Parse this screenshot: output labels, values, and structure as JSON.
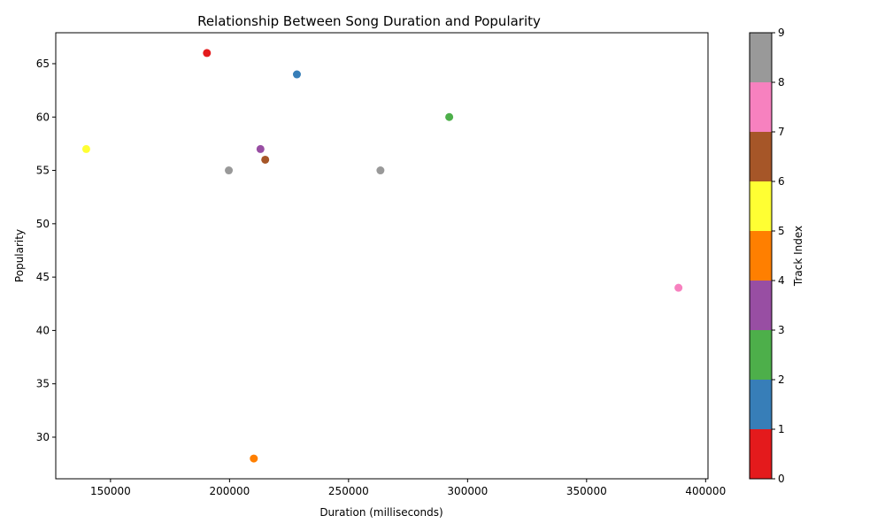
{
  "chart_data": {
    "type": "scatter",
    "title": "Relationship Between Song Duration and Popularity",
    "xlabel": "Duration (milliseconds)",
    "ylabel": "Popularity",
    "xlim": [
      127000,
      401000
    ],
    "ylim": [
      26.1,
      67.9
    ],
    "xticks": [
      150000,
      200000,
      250000,
      300000,
      350000,
      400000
    ],
    "yticks": [
      30,
      35,
      40,
      45,
      50,
      55,
      60,
      65
    ],
    "grid": false,
    "points": [
      {
        "index": 0,
        "x": 190500,
        "y": 66,
        "color": "#e41a1c"
      },
      {
        "index": 1,
        "x": 228300,
        "y": 64,
        "color": "#377eb8"
      },
      {
        "index": 2,
        "x": 292300,
        "y": 60,
        "color": "#4daf4a"
      },
      {
        "index": 3,
        "x": 213000,
        "y": 57,
        "color": "#984ea3"
      },
      {
        "index": 4,
        "x": 210200,
        "y": 28,
        "color": "#ff7f00"
      },
      {
        "index": 5,
        "x": 139800,
        "y": 57,
        "color": "#ffff33"
      },
      {
        "index": 6,
        "x": 215000,
        "y": 56,
        "color": "#a65628"
      },
      {
        "index": 7,
        "x": 388600,
        "y": 44,
        "color": "#f781bf"
      },
      {
        "index": 8,
        "x": 199700,
        "y": 55,
        "color": "#999999"
      },
      {
        "index": 9,
        "x": 263400,
        "y": 55,
        "color": "#999999"
      }
    ],
    "colorbar": {
      "label": "Track Index",
      "range": [
        0,
        9
      ],
      "ticks": [
        0,
        1,
        2,
        3,
        4,
        5,
        6,
        7,
        8,
        9
      ],
      "colors": [
        "#e41a1c",
        "#377eb8",
        "#4daf4a",
        "#984ea3",
        "#ff7f00",
        "#ffff33",
        "#a65628",
        "#f781bf",
        "#999999"
      ]
    }
  }
}
